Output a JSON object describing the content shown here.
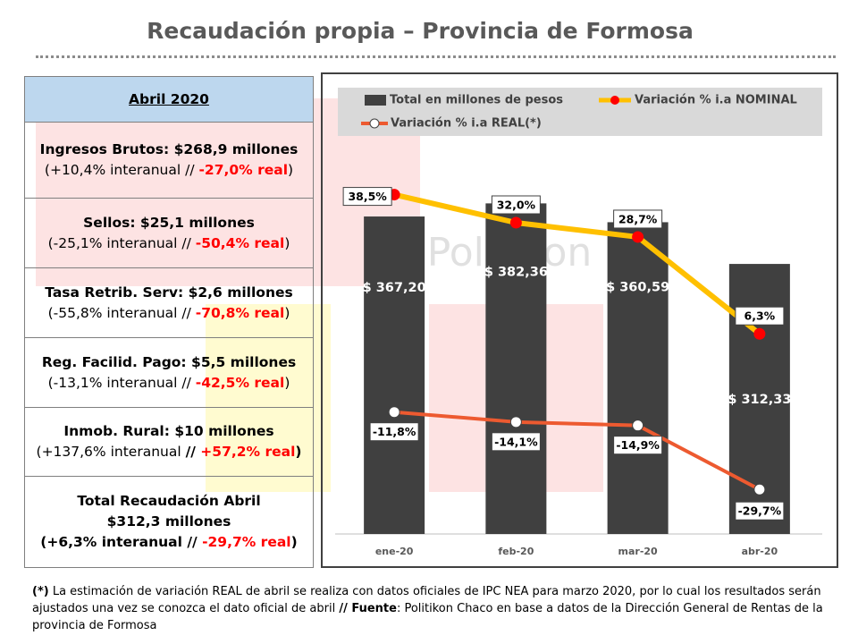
{
  "title": "Recaudación propia – Provincia de Formosa",
  "table": {
    "header": "Abril 2020",
    "rows": [
      [
        [
          "Ingresos Brutos: $268,9 millones"
        ],
        [
          "(+10,4% interanual // ",
          "-27,0% real",
          ")"
        ]
      ],
      [
        [
          "Sellos: $25,1 millones"
        ],
        [
          "(-25,1% interanual // ",
          "-50,4% real",
          ")"
        ]
      ],
      [
        [
          "Tasa Retrib. Serv: $2,6 millones"
        ],
        [
          "(-55,8% interanual // ",
          "-70,8% real",
          ")"
        ]
      ],
      [
        [
          "Reg. Facilid. Pago: $5,5 millones"
        ],
        [
          "(-13,1% interanual // ",
          "-42,5% real",
          ")"
        ]
      ],
      [
        [
          "Inmob. Rural: $10 millones"
        ],
        [
          "(+137,6% interanual ",
          "// ",
          "+57,2% real",
          ")"
        ]
      ],
      [
        [
          "Total Recaudación Abril"
        ],
        [
          "$312,3 millones"
        ],
        [
          "(+6,3% interanual // ",
          "-29,7% real",
          ")"
        ]
      ]
    ]
  },
  "chart_data": {
    "type": "bar_line",
    "watermark": "Politikon",
    "categories": [
      "ene-20",
      "feb-20",
      "mar-20",
      "abr-20"
    ],
    "ylim": [
      0,
      450
    ],
    "y2lim": [
      -40,
      50
    ],
    "series": [
      {
        "name": "Total en millones de pesos",
        "type": "bar",
        "color": "#404040",
        "values": [
          367.2,
          382.36,
          360.59,
          312.33
        ],
        "value_labels": [
          "$ 367,20",
          "$ 382,36",
          "$ 360,59",
          "$ 312,33"
        ]
      },
      {
        "name": "Variación % i.a NOMINAL",
        "type": "line",
        "axis": "y2",
        "color": "#ffc000",
        "marker_color": "#ff0000",
        "values": [
          38.5,
          32.0,
          28.7,
          6.3
        ],
        "value_labels": [
          "38,5%",
          "32,0%",
          "28,7%",
          "6,3%"
        ]
      },
      {
        "name": "Variación % i.a REAL(*)",
        "type": "line",
        "axis": "y2",
        "color": "#ed5a30",
        "marker_color": "#ffffff",
        "values": [
          -11.8,
          -14.1,
          -14.9,
          -29.7
        ],
        "value_labels": [
          "-11,8%",
          "-14,1%",
          "-14,9%",
          "-29,7%"
        ]
      }
    ]
  },
  "footnote": [
    "(*)",
    " La estimación de variación REAL de abril se realiza con datos oficiales de IPC NEA para marzo 2020, por lo cual los resultados serán ajustados una vez se conozca el dato oficial de abril ",
    "// Fuente",
    ": Politikon Chaco en base a datos de la Dirección General de Rentas de la provincia de Formosa"
  ]
}
